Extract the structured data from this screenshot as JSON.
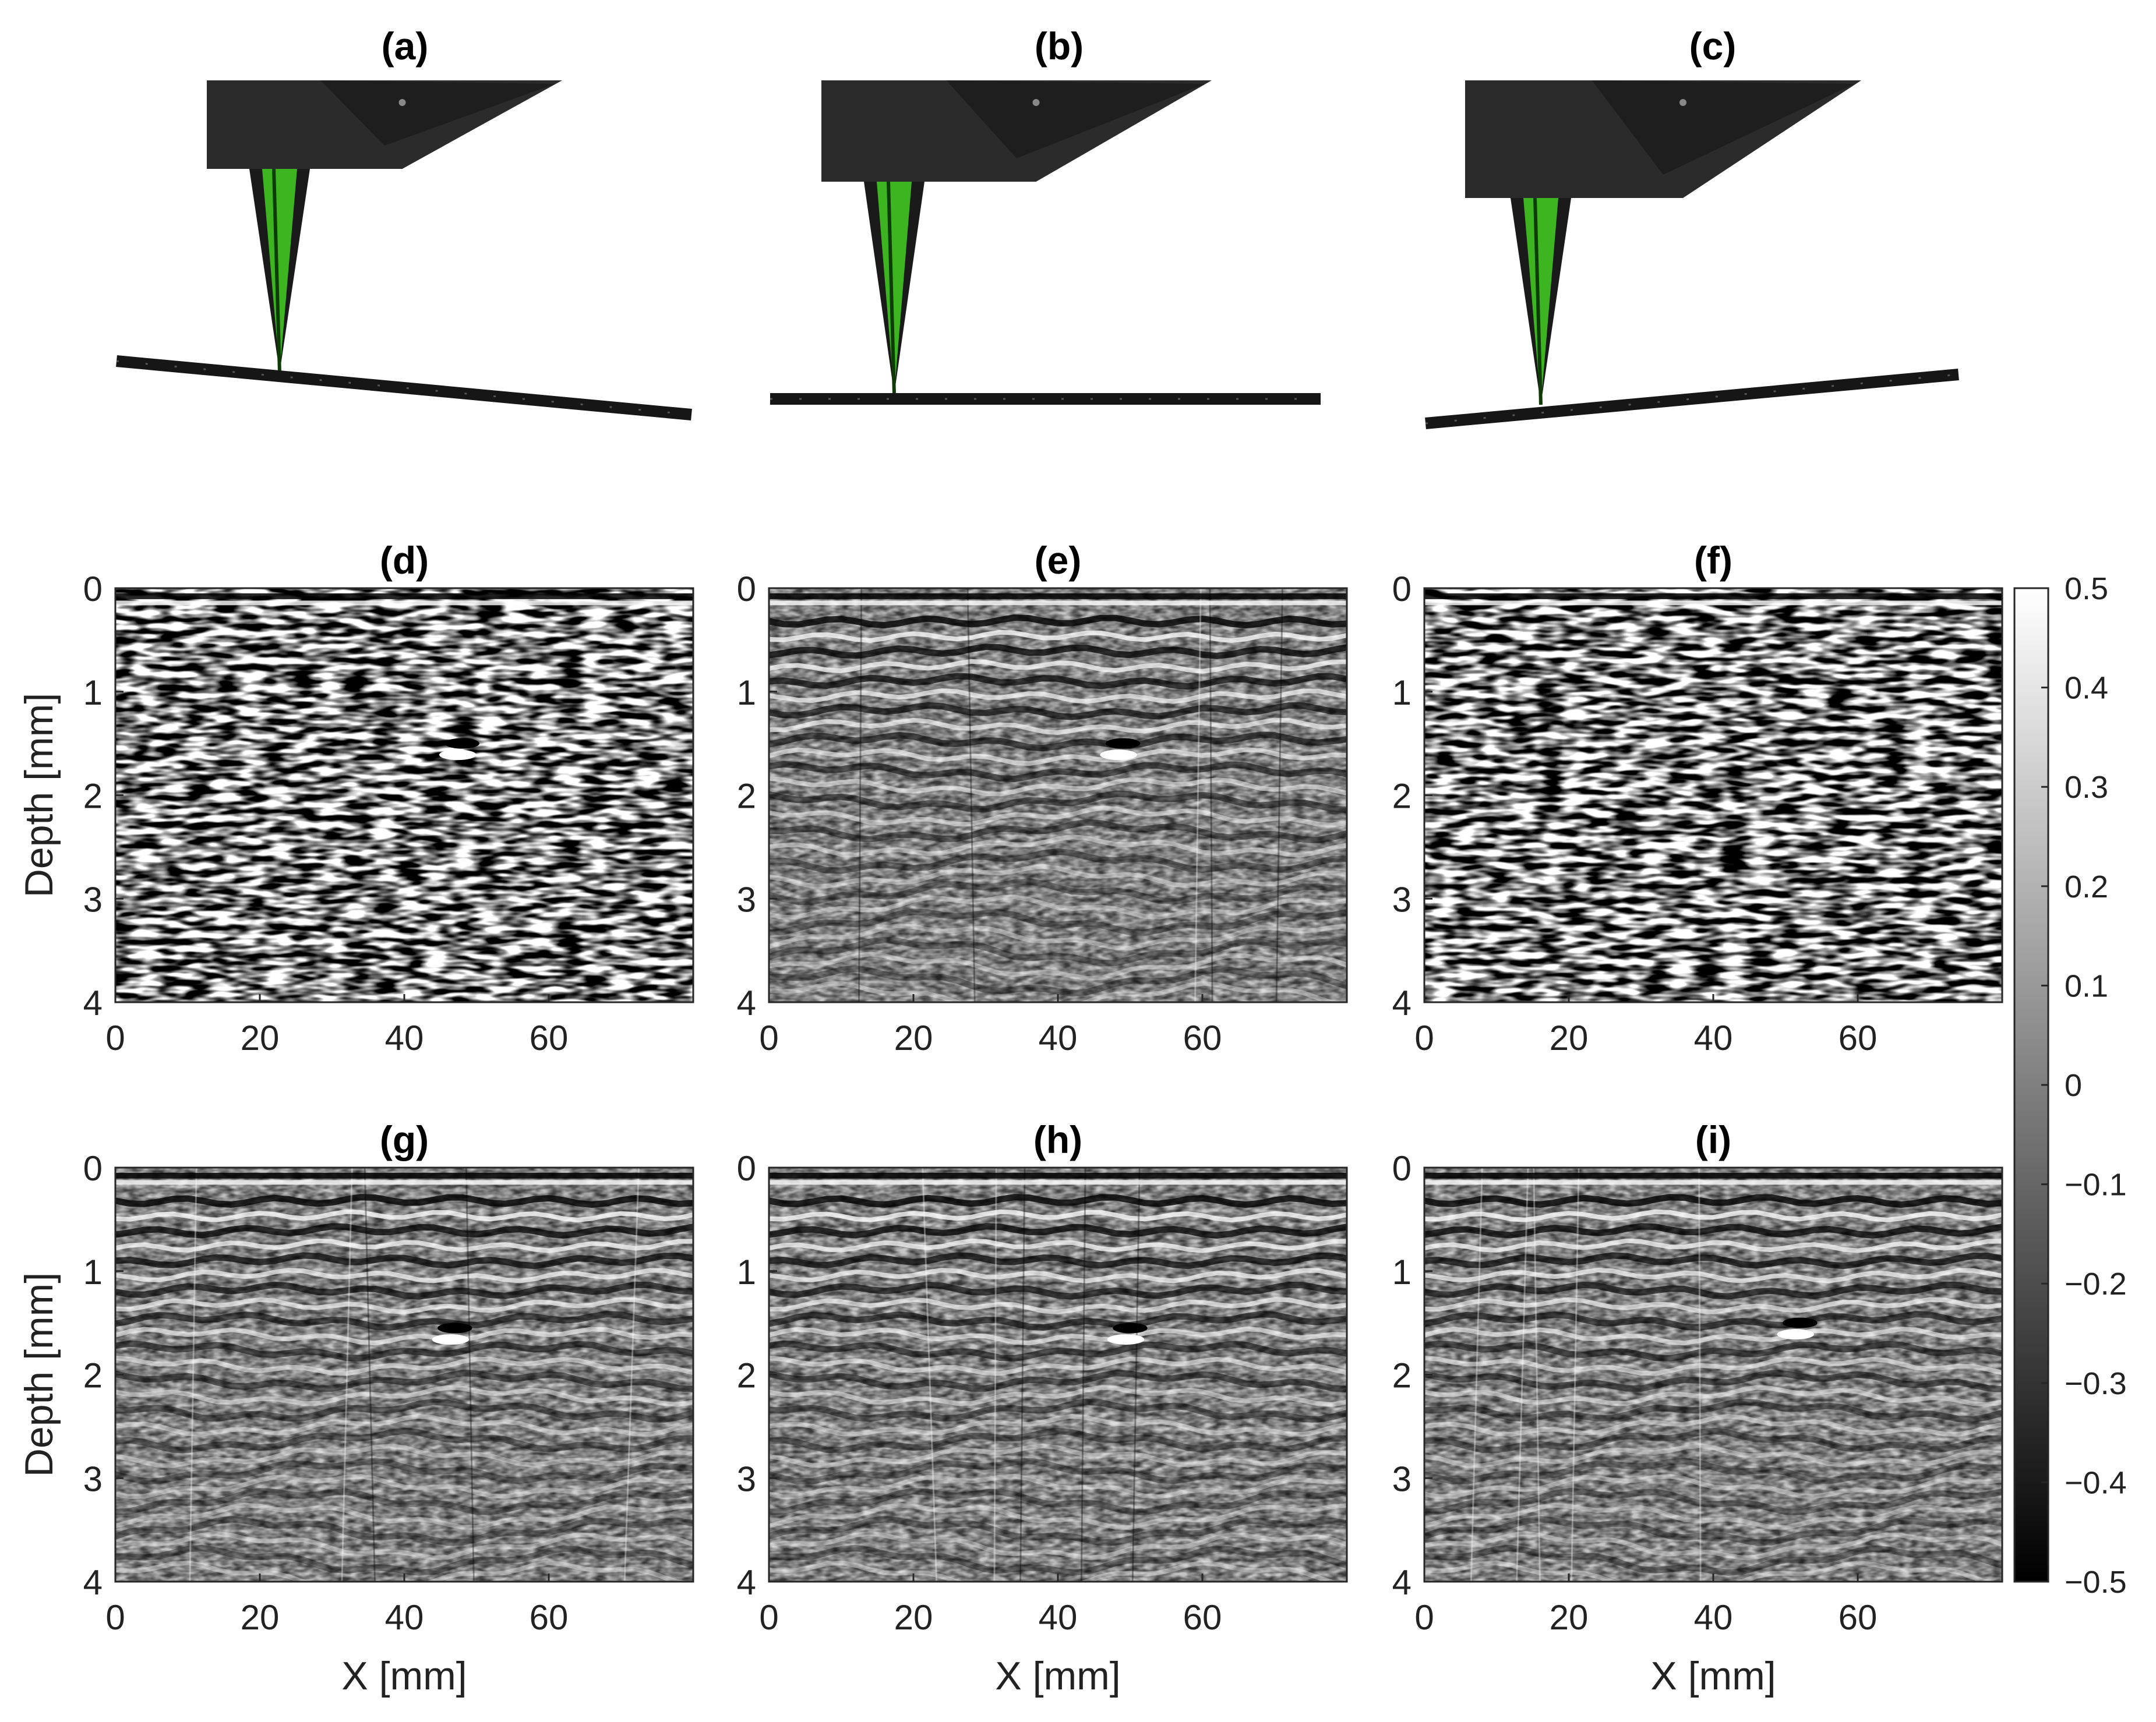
{
  "figure": {
    "top_panels": [
      {
        "label": "(a)",
        "tilt": "descending-right"
      },
      {
        "label": "(b)",
        "tilt": "flat"
      },
      {
        "label": "(c)",
        "tilt": "ascending-right"
      }
    ],
    "colors": {
      "transducer_body": "#2b2b2b",
      "transducer_face": "#1e1e1e",
      "transducer_beam": "#3cb521",
      "specimen": "#161616",
      "axis": "#262626"
    }
  },
  "chart_data": [
    {
      "type": "heatmap",
      "title": "(d)",
      "xlabel": "",
      "ylabel": "Depth [mm]",
      "xlim": [
        0,
        80
      ],
      "ylim": [
        0,
        4
      ],
      "xticks": [
        "0",
        "20",
        "40",
        "60"
      ],
      "yticks": [
        "0",
        "1",
        "2",
        "3",
        "4"
      ],
      "colormap": "gray",
      "clim": [
        -0.5,
        0.5
      ],
      "content": "speckle",
      "features": [
        {
          "x": 48,
          "depth": 1.55
        }
      ]
    },
    {
      "type": "heatmap",
      "title": "(e)",
      "xlabel": "",
      "ylabel": "",
      "xlim": [
        0,
        80
      ],
      "ylim": [
        0,
        4
      ],
      "xticks": [
        "0",
        "20",
        "40",
        "60"
      ],
      "yticks": [
        "0",
        "1",
        "2",
        "3",
        "4"
      ],
      "colormap": "gray",
      "clim": [
        -0.5,
        0.5
      ],
      "content": "layered",
      "features": [
        {
          "x": 49,
          "depth": 1.55
        }
      ]
    },
    {
      "type": "heatmap",
      "title": "(f)",
      "xlabel": "",
      "ylabel": "",
      "xlim": [
        0,
        80
      ],
      "ylim": [
        0,
        4
      ],
      "xticks": [
        "0",
        "20",
        "40",
        "60"
      ],
      "yticks": [
        "0",
        "1",
        "2",
        "3",
        "4"
      ],
      "colormap": "gray",
      "clim": [
        -0.5,
        0.5
      ],
      "content": "speckle",
      "features": []
    },
    {
      "type": "heatmap",
      "title": "(g)",
      "xlabel": "X [mm]",
      "ylabel": "Depth [mm]",
      "xlim": [
        0,
        80
      ],
      "ylim": [
        0,
        4
      ],
      "xticks": [
        "0",
        "20",
        "40",
        "60"
      ],
      "yticks": [
        "0",
        "1",
        "2",
        "3",
        "4"
      ],
      "colormap": "gray",
      "clim": [
        -0.5,
        0.5
      ],
      "content": "layered",
      "features": [
        {
          "x": 47,
          "depth": 1.6
        }
      ]
    },
    {
      "type": "heatmap",
      "title": "(h)",
      "xlabel": "X [mm]",
      "ylabel": "",
      "xlim": [
        0,
        80
      ],
      "ylim": [
        0,
        4
      ],
      "xticks": [
        "0",
        "20",
        "40",
        "60"
      ],
      "yticks": [
        "0",
        "1",
        "2",
        "3",
        "4"
      ],
      "colormap": "gray",
      "clim": [
        -0.5,
        0.5
      ],
      "content": "layered",
      "features": [
        {
          "x": 50,
          "depth": 1.6
        }
      ]
    },
    {
      "type": "heatmap",
      "title": "(i)",
      "xlabel": "X [mm]",
      "ylabel": "",
      "xlim": [
        0,
        80
      ],
      "ylim": [
        0,
        4
      ],
      "xticks": [
        "0",
        "20",
        "40",
        "60"
      ],
      "yticks": [
        "0",
        "1",
        "2",
        "3",
        "4"
      ],
      "colormap": "gray",
      "clim": [
        -0.5,
        0.5
      ],
      "content": "layered",
      "features": [
        {
          "x": 52,
          "depth": 1.55
        }
      ]
    }
  ],
  "colorbar": {
    "range": [
      -0.5,
      0.5
    ],
    "ticks": [
      "0.5",
      "0.4",
      "0.3",
      "0.2",
      "0.1",
      "0",
      "−0.1",
      "−0.2",
      "−0.3",
      "−0.4",
      "−0.5"
    ]
  }
}
